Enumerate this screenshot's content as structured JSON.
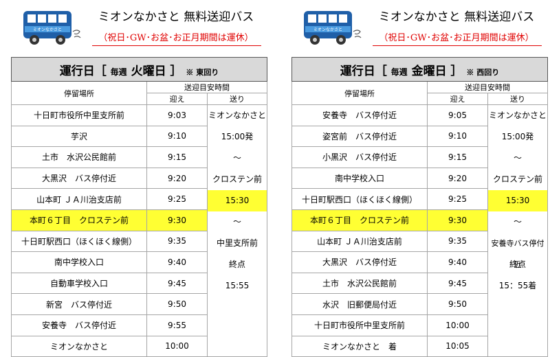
{
  "header": {
    "title": "ミオンなかさと 無料送迎バス",
    "note": "（祝日･GW･お盆･お正月期間は運休）",
    "bus_label": "ミオンなかさと"
  },
  "colors": {
    "highlight": "#ffff33",
    "note_red": "#e00000",
    "bus_blue": "#1f5fa8",
    "header_gray": "#d9d9d9"
  },
  "schedules": [
    {
      "title_prefix": "運行日［",
      "title_week": "毎週",
      "title_day": "火曜日",
      "title_suffix": "］",
      "direction": "※ 東回り",
      "col_stop": "停留場所",
      "col_times": "送迎目安時間",
      "col_pickup": "迎え",
      "col_send": "送り",
      "stops": [
        {
          "name": "十日町市役所中里支所前",
          "time": "9:03"
        },
        {
          "name": "芋沢",
          "time": "9:10"
        },
        {
          "name": "土市　水沢公民館前",
          "time": "9:15"
        },
        {
          "name": "大黒沢　バス停付近",
          "time": "9:20"
        },
        {
          "name": "山本町 ＪＡ川治支店前",
          "time": "9:25"
        },
        {
          "name": "本町６丁目　クロステン前",
          "time": "9:30"
        },
        {
          "name": "十日町駅西口（ほくほく線側）",
          "time": "9:35"
        },
        {
          "name": "南中学校入口",
          "time": "9:40"
        },
        {
          "name": "自動車学校入口",
          "time": "9:45"
        },
        {
          "name": "新宮　バス停付近",
          "time": "9:50"
        },
        {
          "name": "安養寺　バス停付近",
          "time": "9:55"
        },
        {
          "name": "ミオンなかさと",
          "time": "10:00"
        }
      ],
      "send": [
        "ミオンなかさと",
        "15:00発",
        "〜",
        "クロステン前",
        "15:30",
        "〜",
        "中里支所前",
        "終点",
        "15:55"
      ]
    },
    {
      "title_prefix": "運行日［",
      "title_week": "毎週",
      "title_day": "金曜日",
      "title_suffix": "］",
      "direction": "※ 西回り",
      "col_stop": "停留場所",
      "col_times": "送迎目安時間",
      "col_pickup": "迎え",
      "col_send": "送り",
      "stops": [
        {
          "name": "安養寺　バス停付近",
          "time": "9:05"
        },
        {
          "name": "姿宮前　バス停付近",
          "time": "9:10"
        },
        {
          "name": "小黒沢　バス停付近",
          "time": "9:15"
        },
        {
          "name": "南中学校入口",
          "time": "9:20"
        },
        {
          "name": "十日町駅西口（ほくほく線側）",
          "time": "9:25"
        },
        {
          "name": "本町６丁目　クロステン前",
          "time": "9:30"
        },
        {
          "name": "山本町 ＪＡ川治支店前",
          "time": "9:35"
        },
        {
          "name": "大黒沢　バス停付近",
          "time": "9:40"
        },
        {
          "name": "土市　水沢公民館前",
          "time": "9:45"
        },
        {
          "name": "水沢　旧郵便局付近",
          "time": "9:50"
        },
        {
          "name": "十日町市役所中里支所前",
          "time": "10:00"
        },
        {
          "name": "ミオンなかさと　着",
          "time": "10:05"
        }
      ],
      "send": [
        "ミオンなかさと",
        "15:00発",
        "〜",
        "クロステン前",
        "15:30",
        "〜",
        "安養寺バス停付近",
        "終点",
        "15：55着"
      ]
    }
  ]
}
